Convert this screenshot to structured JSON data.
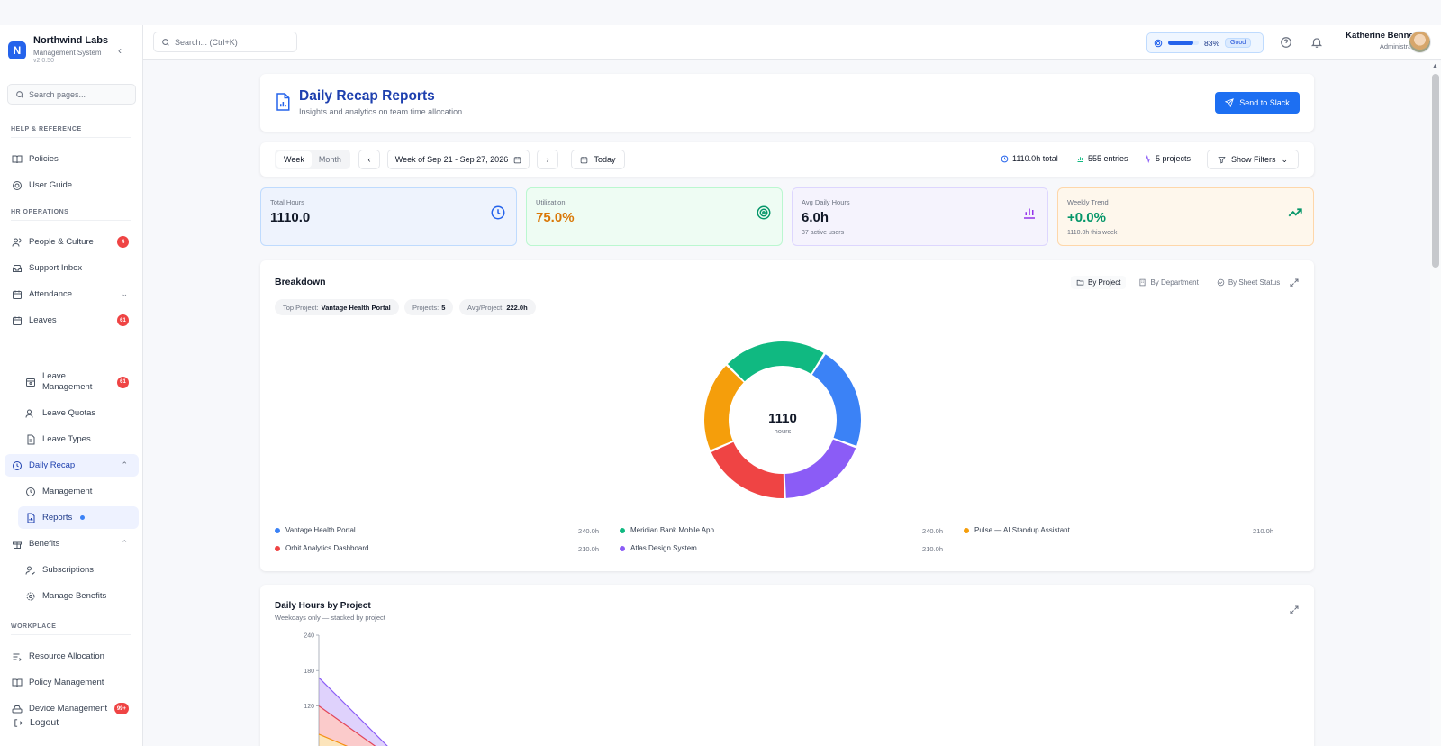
{
  "brand": {
    "letter": "N",
    "name": "Northwind Labs",
    "subtitle": "Management System",
    "version": "v2.0.50"
  },
  "sidebar": {
    "search_placeholder": "Search pages...",
    "sections": {
      "help": "HELP & REFERENCE",
      "hr": "HR OPERATIONS",
      "workplace": "WORKPLACE"
    },
    "items": {
      "policies": "Policies",
      "user_guide": "User Guide",
      "people": {
        "label": "People & Culture",
        "badge": "4"
      },
      "support": "Support Inbox",
      "attendance": "Attendance",
      "leaves": {
        "label": "Leaves",
        "badge": "61"
      },
      "leave_mgmt": {
        "label1": "Leave",
        "label2": "Management",
        "badge": "61"
      },
      "leave_quotas": "Leave Quotas",
      "leave_types": "Leave Types",
      "daily_recap": "Daily Recap",
      "management": "Management",
      "reports": "Reports",
      "benefits": "Benefits",
      "subscriptions": "Subscriptions",
      "manage_benefits": "Manage Benefits",
      "resource_alloc": "Resource Allocation",
      "policy_mgmt": "Policy Management",
      "device_mgmt": {
        "label": "Device Management",
        "badge": "99+"
      }
    },
    "logout": "Logout"
  },
  "topbar": {
    "search_placeholder": "Search... (Ctrl+K)",
    "health": {
      "percent_label": "83%",
      "fraction": 0.83,
      "status": "Good"
    },
    "user": {
      "name": "Katherine Bennett",
      "role": "Administrator"
    }
  },
  "header": {
    "title": "Daily Recap Reports",
    "subtitle": "Insights and analytics on team time allocation",
    "send_button": "Send to Slack"
  },
  "toolbar": {
    "period_tabs": [
      "Week",
      "Month"
    ],
    "week_range": "Week of Sep 21 - Sep 27, 2026",
    "today": "Today",
    "total": "1110.0h total",
    "entries": "555 entries",
    "projects": "5 projects",
    "filters": "Show Filters"
  },
  "kpis": [
    {
      "label": "Total Hours",
      "value": "1110.0",
      "sub": ""
    },
    {
      "label": "Utilization",
      "value": "75.0%",
      "sub": ""
    },
    {
      "label": "Avg Daily Hours",
      "value": "6.0h",
      "sub": "37 active users"
    },
    {
      "label": "Weekly Trend",
      "value": "+0.0%",
      "sub": "1110.0h this week"
    }
  ],
  "breakdown": {
    "title": "Breakdown",
    "tabs": [
      "By Project",
      "By Department",
      "By Sheet Status"
    ],
    "pills": {
      "top_label": "Top Project:",
      "top_value": "Vantage Health Portal",
      "projects_label": "Projects:",
      "projects_value": "5",
      "avg_label": "Avg/Project:",
      "avg_value": "222.0h"
    },
    "center_value": "1110",
    "center_unit": "hours"
  },
  "chart_data": [
    {
      "type": "pie",
      "title": "Breakdown",
      "categories": [
        "Vantage Health Portal",
        "Meridian Bank Mobile App",
        "Pulse — AI Standup Assistant",
        "Orbit Analytics Dashboard",
        "Atlas Design System"
      ],
      "values": [
        240,
        240,
        210,
        210,
        210
      ],
      "value_labels": [
        "240.0h",
        "240.0h",
        "210.0h",
        "210.0h",
        "210.0h"
      ],
      "colors": [
        "#3b82f6",
        "#10b981",
        "#f59e0b",
        "#ef4444",
        "#8b5cf6"
      ],
      "donut": true
    },
    {
      "type": "area",
      "title": "Daily Hours by Project",
      "subtitle": "Weekdays only — stacked by project",
      "yticks": [
        "240",
        "180",
        "120"
      ],
      "ylim": [
        0,
        240
      ],
      "series": [
        {
          "color": "#10b981",
          "values": [
            24,
            0
          ]
        },
        {
          "color": "#f59e0b",
          "values": [
            48,
            0
          ]
        },
        {
          "color": "#ef4444",
          "values": [
            48,
            0
          ]
        },
        {
          "color": "#8b5cf6",
          "values": [
            48,
            0
          ]
        }
      ]
    }
  ]
}
